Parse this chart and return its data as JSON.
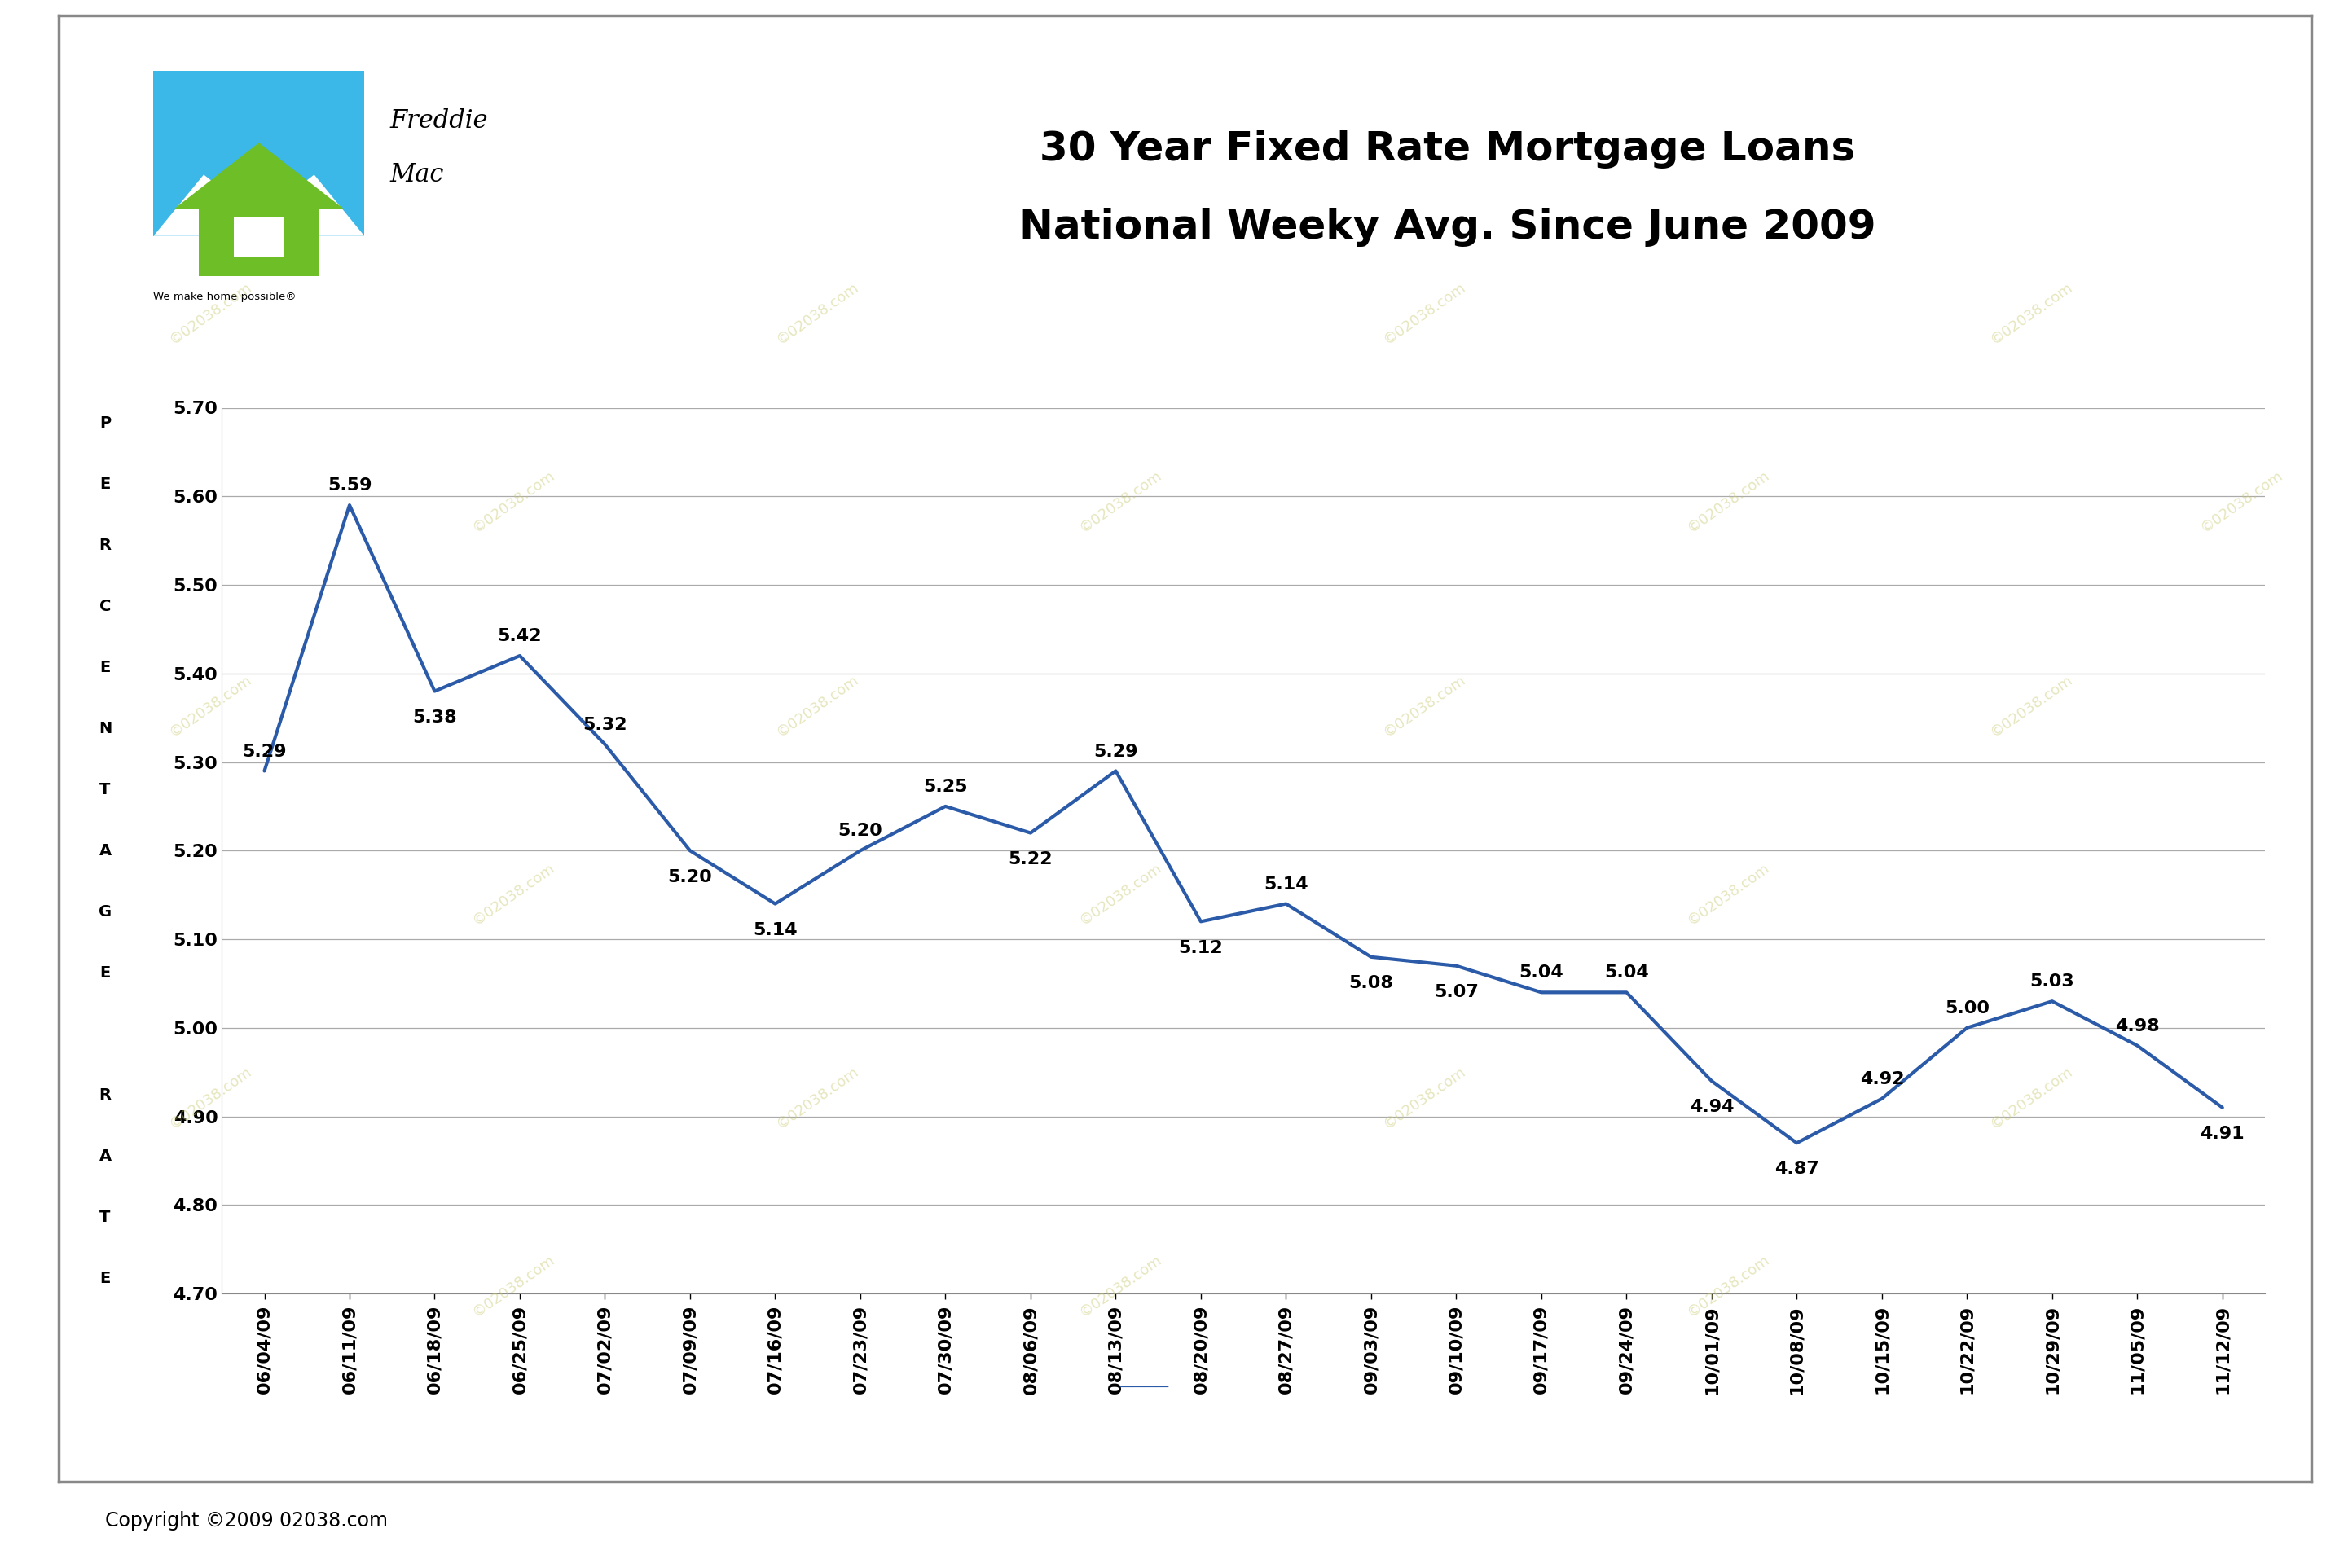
{
  "title_line1": "30 Year Fixed Rate Mortgage Loans",
  "title_line2": "National Weeky Avg. Since June 2009",
  "copyright_text": "Copyright ©2009 02038.com",
  "dates": [
    "06/04/09",
    "06/11/09",
    "06/18/09",
    "06/25/09",
    "07/02/09",
    "07/09/09",
    "07/16/09",
    "07/23/09",
    "07/30/09",
    "08/06/09",
    "08/13/09",
    "08/20/09",
    "08/27/09",
    "09/03/09",
    "09/10/09",
    "09/17/09",
    "09/24/09",
    "10/01/09",
    "10/08/09",
    "10/15/09",
    "10/22/09",
    "10/29/09",
    "11/05/09",
    "11/12/09"
  ],
  "values": [
    5.29,
    5.59,
    5.38,
    5.42,
    5.32,
    5.2,
    5.14,
    5.2,
    5.25,
    5.22,
    5.29,
    5.12,
    5.14,
    5.08,
    5.07,
    5.04,
    5.04,
    4.94,
    4.87,
    4.92,
    5.0,
    5.03,
    4.98,
    4.91
  ],
  "ylim_min": 4.7,
  "ylim_max": 5.7,
  "ytick_vals": [
    4.7,
    4.8,
    4.9,
    5.0,
    5.1,
    5.2,
    5.3,
    5.4,
    5.5,
    5.6,
    5.7
  ],
  "line_color": "#2B5BA8",
  "line_width": 3.0,
  "bg_color": "#FFFFFF",
  "grid_color": "#AAAAAA",
  "annot_fontsize": 16,
  "tick_fontsize": 16,
  "title_fontsize": 36,
  "ylabel_letters": [
    "P",
    "",
    "E",
    "",
    "R",
    "",
    "C",
    "",
    "E",
    "",
    "N",
    "",
    "T",
    "",
    "A",
    "",
    "G",
    "",
    "E",
    "",
    "",
    "",
    "R",
    "",
    "A",
    "",
    "T",
    "",
    "E"
  ],
  "label_above": [
    true,
    true,
    false,
    true,
    true,
    false,
    false,
    true,
    true,
    false,
    true,
    false,
    true,
    false,
    false,
    true,
    true,
    false,
    false,
    true,
    true,
    true,
    true,
    false
  ],
  "freddie_blue": "#3BB8E8",
  "freddie_green": "#6DBE27",
  "border_color": "#888888",
  "watermark_color": "#C8C870",
  "watermark_alpha": 0.45,
  "watermark_text": "©02038.com"
}
